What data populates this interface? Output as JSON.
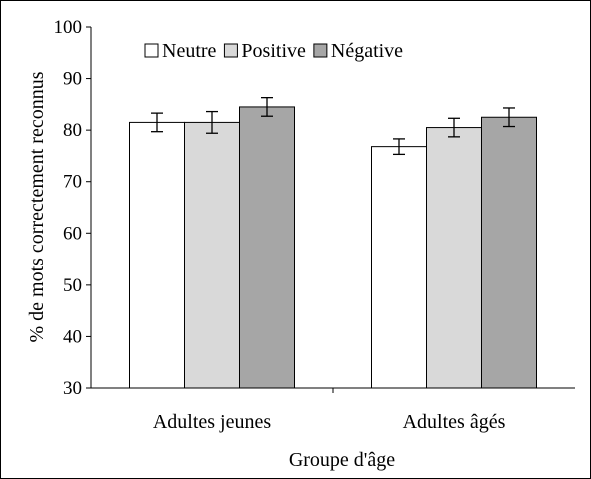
{
  "chart_data": {
    "type": "bar",
    "title": "",
    "xlabel": "Groupe d'âge",
    "ylabel": "% de mots correctement reconnus",
    "ylim": [
      30,
      100
    ],
    "yticks": [
      30,
      40,
      50,
      60,
      70,
      80,
      90,
      100
    ],
    "grid": false,
    "legend_position": "top",
    "categories": [
      "Adultes jeunes",
      "Adultes âgés"
    ],
    "series": [
      {
        "name": "Neutre",
        "color": "#ffffff",
        "values": [
          81.5,
          76.8
        ],
        "errors": [
          1.8,
          1.5
        ]
      },
      {
        "name": "Positive",
        "color": "#d9d9d9",
        "values": [
          81.5,
          80.5
        ],
        "errors": [
          2.1,
          1.8
        ]
      },
      {
        "name": "Négative",
        "color": "#a6a6a6",
        "values": [
          84.5,
          82.5
        ],
        "errors": [
          1.8,
          1.8
        ]
      }
    ]
  }
}
